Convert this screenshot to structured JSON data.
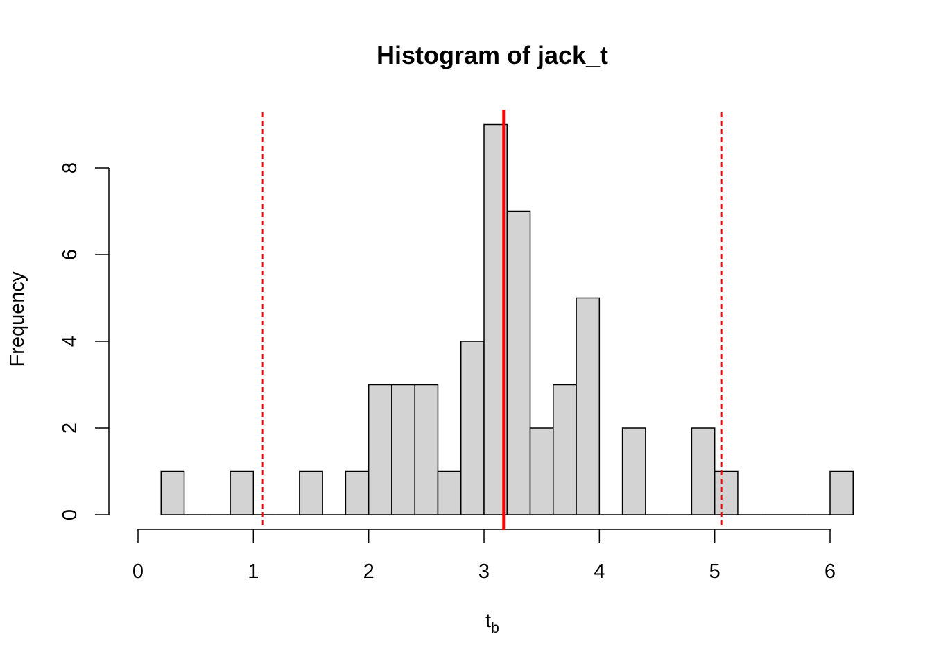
{
  "chart_data": {
    "type": "bar",
    "title": "Histogram of jack_t",
    "xlabel": "t",
    "xlabel_subscript": "b",
    "ylabel": "Frequency",
    "xlim": [
      0,
      6
    ],
    "ylim": [
      0,
      9
    ],
    "x_ticks": [
      "0",
      "1",
      "2",
      "3",
      "4",
      "5",
      "6"
    ],
    "y_ticks": [
      "0",
      "2",
      "4",
      "6",
      "8"
    ],
    "bar_fill": "#d3d3d3",
    "bar_stroke": "#000000",
    "bins": [
      {
        "start": 0.2,
        "end": 0.4,
        "count": 1
      },
      {
        "start": 0.4,
        "end": 0.6,
        "count": 0
      },
      {
        "start": 0.6,
        "end": 0.8,
        "count": 0
      },
      {
        "start": 0.8,
        "end": 1.0,
        "count": 1
      },
      {
        "start": 1.0,
        "end": 1.2,
        "count": 0
      },
      {
        "start": 1.2,
        "end": 1.4,
        "count": 0
      },
      {
        "start": 1.4,
        "end": 1.6,
        "count": 1
      },
      {
        "start": 1.6,
        "end": 1.8,
        "count": 0
      },
      {
        "start": 1.8,
        "end": 2.0,
        "count": 1
      },
      {
        "start": 2.0,
        "end": 2.2,
        "count": 3
      },
      {
        "start": 2.2,
        "end": 2.4,
        "count": 3
      },
      {
        "start": 2.4,
        "end": 2.6,
        "count": 3
      },
      {
        "start": 2.6,
        "end": 2.8,
        "count": 1
      },
      {
        "start": 2.8,
        "end": 3.0,
        "count": 4
      },
      {
        "start": 3.0,
        "end": 3.2,
        "count": 9
      },
      {
        "start": 3.2,
        "end": 3.4,
        "count": 7
      },
      {
        "start": 3.4,
        "end": 3.6,
        "count": 2
      },
      {
        "start": 3.6,
        "end": 3.8,
        "count": 3
      },
      {
        "start": 3.8,
        "end": 4.0,
        "count": 5
      },
      {
        "start": 4.0,
        "end": 4.2,
        "count": 0
      },
      {
        "start": 4.2,
        "end": 4.4,
        "count": 2
      },
      {
        "start": 4.4,
        "end": 4.6,
        "count": 0
      },
      {
        "start": 4.6,
        "end": 4.8,
        "count": 0
      },
      {
        "start": 4.8,
        "end": 5.0,
        "count": 2
      },
      {
        "start": 5.0,
        "end": 5.2,
        "count": 1
      },
      {
        "start": 5.2,
        "end": 5.4,
        "count": 0
      },
      {
        "start": 5.4,
        "end": 5.6,
        "count": 0
      },
      {
        "start": 5.6,
        "end": 5.8,
        "count": 0
      },
      {
        "start": 5.8,
        "end": 6.0,
        "count": 0
      },
      {
        "start": 6.0,
        "end": 6.2,
        "count": 1
      }
    ],
    "reference_lines": [
      {
        "x": 3.17,
        "color": "#ff0000",
        "style": "solid"
      },
      {
        "x": 1.08,
        "color": "#ff0000",
        "style": "dashed"
      },
      {
        "x": 5.06,
        "color": "#ff0000",
        "style": "dashed"
      }
    ],
    "grid": false
  }
}
